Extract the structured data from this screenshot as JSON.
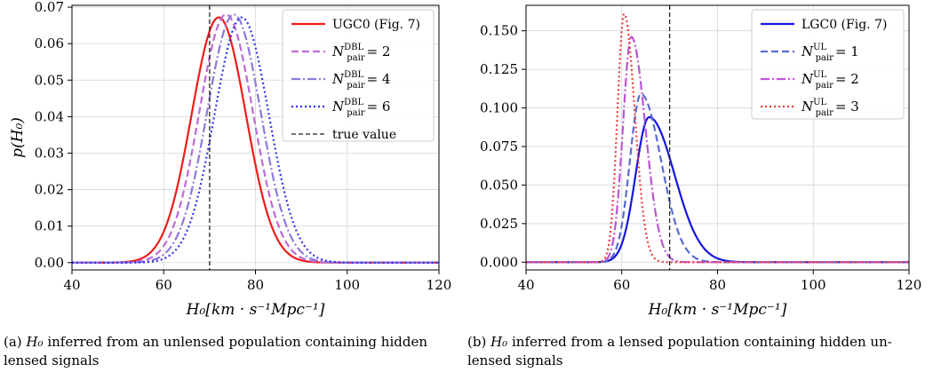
{
  "chart_data": [
    {
      "type": "line",
      "panel": "a",
      "xlabel": "H₀[km · s⁻¹Mpc⁻¹]",
      "ylabel": "p(H₀)",
      "xlim": [
        40,
        120
      ],
      "ylim": [
        -0.002,
        0.0705
      ],
      "xticks": [
        40,
        60,
        80,
        100,
        120
      ],
      "xtick_labels": [
        "40",
        "60",
        "80",
        "100",
        "120"
      ],
      "yticks": [
        0.0,
        0.01,
        0.02,
        0.03,
        0.04,
        0.05,
        0.06,
        0.07
      ],
      "ytick_labels": [
        "0.00",
        "0.01",
        "0.02",
        "0.03",
        "0.04",
        "0.05",
        "0.06",
        "0.07"
      ],
      "grid": true,
      "legend_location": "top-right",
      "true_value": 70,
      "true_value_label": "true value",
      "series": [
        {
          "name": "UGC0 (Fig. 7)",
          "color": "#ee1c1c",
          "style": "solid",
          "shape": "gaussian",
          "peak_x": 72.0,
          "peak_y": 0.0672,
          "width": 5.9
        },
        {
          "name": "N_pair^DBL = 2",
          "legend_base": "N",
          "legend_sub": "pair",
          "legend_sup": "DBL",
          "legend_value": "= 2",
          "color": "#bf6ad8",
          "style": "dashed",
          "shape": "gaussian",
          "peak_x": 73.6,
          "peak_y": 0.068,
          "width": 5.85
        },
        {
          "name": "N_pair^DBL = 4",
          "legend_base": "N",
          "legend_sub": "pair",
          "legend_sup": "DBL",
          "legend_value": "= 4",
          "color": "#8f78de",
          "style": "dashdot",
          "shape": "gaussian",
          "peak_x": 75.3,
          "peak_y": 0.068,
          "width": 5.85
        },
        {
          "name": "N_pair^DBL = 6",
          "legend_base": "N",
          "legend_sub": "pair",
          "legend_sup": "DBL",
          "legend_value": "= 6",
          "color": "#3030f0",
          "style": "dotted",
          "shape": "gaussian",
          "peak_x": 77.0,
          "peak_y": 0.0672,
          "width": 5.9
        }
      ]
    },
    {
      "type": "line",
      "panel": "b",
      "xlabel": "H₀[km · s⁻¹Mpc⁻¹]",
      "ylabel": "",
      "xlim": [
        40,
        120
      ],
      "ylim": [
        -0.005,
        0.1665
      ],
      "xticks": [
        40,
        60,
        80,
        100,
        120
      ],
      "xtick_labels": [
        "40",
        "60",
        "80",
        "100",
        "120"
      ],
      "yticks": [
        0.0,
        0.025,
        0.05,
        0.075,
        0.1,
        0.125,
        0.15
      ],
      "ytick_labels": [
        "0.000",
        "0.025",
        "0.050",
        "0.075",
        "0.100",
        "0.125",
        "0.150"
      ],
      "grid": true,
      "legend_location": "top-right",
      "true_value": 70,
      "true_value_label": "",
      "series": [
        {
          "name": "LGC0 (Fig. 7)",
          "color": "#1515e0",
          "style": "solid",
          "shape": "skewed",
          "peak_x": 65.7,
          "peak_y": 0.094,
          "width_left": 2.8,
          "width_right": 5.3
        },
        {
          "name": "N_pair^UL = 1",
          "legend_base": "N",
          "legend_sub": "pair",
          "legend_sup": "UL",
          "legend_value": "= 1",
          "color": "#5a6ad0",
          "style": "dashed",
          "shape": "skewed",
          "peak_x": 64.0,
          "peak_y": 0.109,
          "width_left": 2.3,
          "width_right": 4.2
        },
        {
          "name": "N_pair^UL = 2",
          "legend_base": "N",
          "legend_sub": "pair",
          "legend_sup": "UL",
          "legend_value": "= 2",
          "color": "#bb55d4",
          "style": "dashdot",
          "shape": "skewed",
          "peak_x": 62.0,
          "peak_y": 0.146,
          "width_left": 1.75,
          "width_right": 2.9
        },
        {
          "name": "N_pair^UL = 3",
          "legend_base": "N",
          "legend_sub": "pair",
          "legend_sup": "UL",
          "legend_value": "= 3",
          "color": "#ee3c3c",
          "style": "dotted",
          "shape": "skewed",
          "peak_x": 60.5,
          "peak_y": 0.161,
          "width_left": 1.4,
          "width_right": 2.2
        }
      ]
    }
  ],
  "captions": {
    "a_label": "(a)",
    "a_var": "H₀",
    "a_line1": "inferred from an unlensed population containing hidden",
    "a_line2": "lensed signals",
    "b_label": "(b)",
    "b_var": "H₀",
    "b_line1": "inferred from a lensed population containing hidden un-",
    "b_line2": "lensed signals"
  }
}
